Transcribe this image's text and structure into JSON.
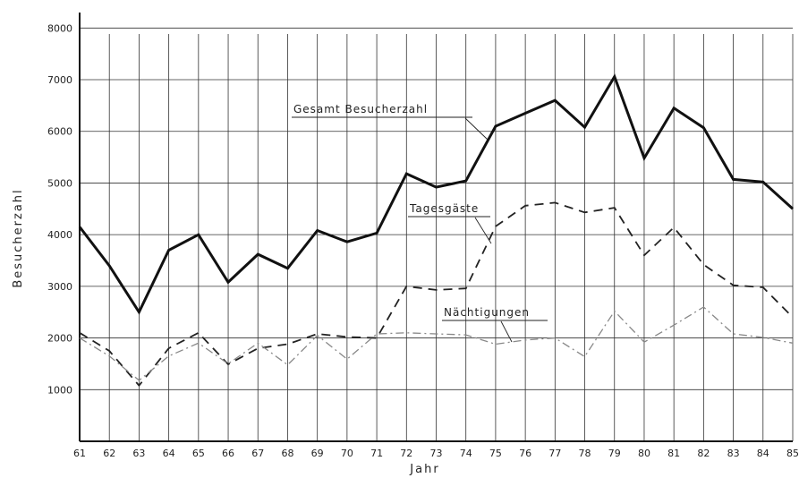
{
  "chart_data": {
    "type": "line",
    "xlabel": "Jahr",
    "ylabel": "Besucherzahl",
    "categories": [
      "61",
      "62",
      "63",
      "64",
      "65",
      "66",
      "67",
      "68",
      "69",
      "70",
      "71",
      "72",
      "73",
      "74",
      "75",
      "76",
      "77",
      "78",
      "79",
      "80",
      "81",
      "82",
      "83",
      "84",
      "85"
    ],
    "y_ticks": [
      "1000",
      "2000",
      "3000",
      "4000",
      "5000",
      "6000",
      "7000",
      "8000"
    ],
    "ylim": [
      0,
      8300
    ],
    "grid": true,
    "series": [
      {
        "name": "Gesamt Besucherzahl",
        "style": "thick-solid",
        "values": [
          4150,
          3400,
          2500,
          3700,
          4000,
          3080,
          3620,
          3350,
          4080,
          3860,
          4030,
          5180,
          4920,
          5040,
          6100,
          6350,
          6600,
          6080,
          7060,
          5480,
          6450,
          6070,
          5070,
          5020,
          4500
        ]
      },
      {
        "name": "Tagesgäste",
        "style": "dashed",
        "values": [
          2100,
          1750,
          1080,
          1800,
          2100,
          1490,
          1800,
          1880,
          2080,
          2020,
          2000,
          3000,
          2930,
          2960,
          4160,
          4560,
          4620,
          4430,
          4520,
          3600,
          4140,
          3420,
          3020,
          2980,
          2400
        ]
      },
      {
        "name": "Nächtigungen",
        "style": "dash-dot",
        "values": [
          2000,
          1650,
          1180,
          1650,
          1900,
          1500,
          1900,
          1480,
          2050,
          1590,
          2080,
          2100,
          2080,
          2060,
          1880,
          1960,
          2000,
          1640,
          2520,
          1920,
          2250,
          2600,
          2080,
          2010,
          1900
        ]
      }
    ],
    "colors": {
      "line": "#1a1a1a",
      "grid": "#333333",
      "tagesgaste": "#222222",
      "nachtigungen": "#888888"
    }
  }
}
